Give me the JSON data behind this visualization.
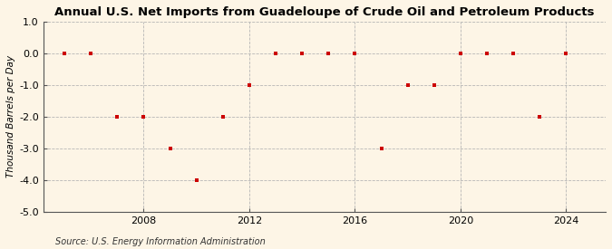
{
  "title": "Annual U.S. Net Imports from Guadeloupe of Crude Oil and Petroleum Products",
  "ylabel": "Thousand Barrels per Day",
  "source": "Source: U.S. Energy Information Administration",
  "years": [
    2005,
    2006,
    2007,
    2008,
    2009,
    2010,
    2011,
    2012,
    2013,
    2014,
    2015,
    2016,
    2017,
    2018,
    2019,
    2020,
    2021,
    2022,
    2023,
    2024
  ],
  "values": [
    0,
    0,
    -2,
    -2,
    -3,
    -4,
    -2,
    -1,
    0,
    0,
    0,
    0,
    -3,
    -1,
    -1,
    0,
    0,
    0,
    -2,
    0
  ],
  "ylim": [
    -5.0,
    1.0
  ],
  "yticks": [
    -5.0,
    -4.0,
    -3.0,
    -2.0,
    -1.0,
    0.0,
    1.0
  ],
  "xticks": [
    2008,
    2012,
    2016,
    2020,
    2024
  ],
  "xlim": [
    2004.2,
    2025.5
  ],
  "marker_color": "#cc0000",
  "marker": "s",
  "marker_size": 3.5,
  "grid_color": "#b0b0b0",
  "bg_color": "#fdf5e6",
  "title_fontsize": 9.5,
  "label_fontsize": 7.5,
  "tick_fontsize": 8,
  "source_fontsize": 7
}
